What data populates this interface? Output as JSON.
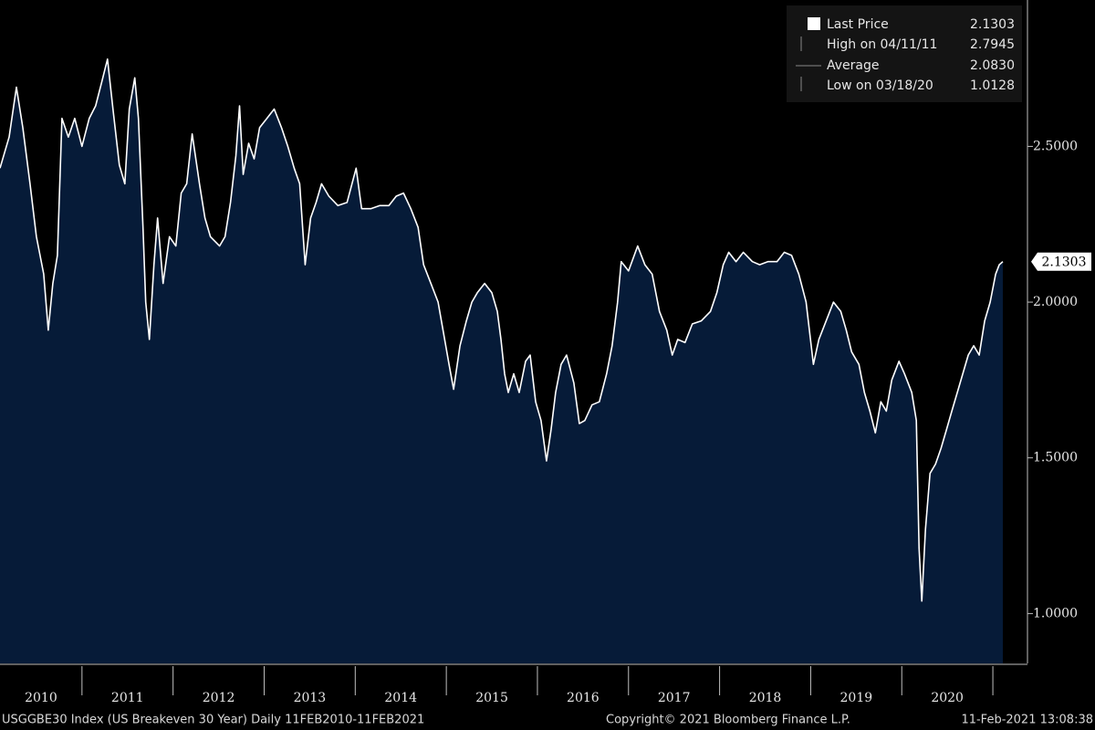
{
  "chart_data": {
    "type": "area",
    "line_color": "#ffffff",
    "fill_color": "#061b38",
    "x": [
      2010.1,
      2010.2,
      2010.28,
      2010.35,
      2010.43,
      2010.5,
      2010.58,
      2010.63,
      2010.68,
      2010.73,
      2010.78,
      2010.85,
      2010.92,
      2011.0,
      2011.08,
      2011.15,
      2011.22,
      2011.28,
      2011.34,
      2011.41,
      2011.47,
      2011.52,
      2011.58,
      2011.62,
      2011.67,
      2011.7,
      2011.74,
      2011.79,
      2011.83,
      2011.89,
      2011.96,
      2012.03,
      2012.09,
      2012.15,
      2012.21,
      2012.29,
      2012.35,
      2012.41,
      2012.51,
      2012.57,
      2012.63,
      2012.69,
      2012.73,
      2012.77,
      2012.83,
      2012.89,
      2012.95,
      2013.03,
      2013.11,
      2013.19,
      2013.26,
      2013.33,
      2013.39,
      2013.45,
      2013.51,
      2013.57,
      2013.63,
      2013.71,
      2013.81,
      2013.91,
      2014.01,
      2014.07,
      2014.17,
      2014.27,
      2014.37,
      2014.45,
      2014.53,
      2014.61,
      2014.69,
      2014.75,
      2014.83,
      2014.91,
      2014.97,
      2015.03,
      2015.08,
      2015.15,
      2015.22,
      2015.28,
      2015.34,
      2015.42,
      2015.5,
      2015.56,
      2015.6,
      2015.64,
      2015.68,
      2015.74,
      2015.8,
      2015.87,
      2015.92,
      2015.98,
      2016.04,
      2016.1,
      2016.15,
      2016.2,
      2016.26,
      2016.32,
      2016.4,
      2016.46,
      2016.52,
      2016.6,
      2016.68,
      2016.76,
      2016.82,
      2016.88,
      2016.92,
      2017.0,
      2017.1,
      2017.18,
      2017.26,
      2017.34,
      2017.42,
      2017.48,
      2017.54,
      2017.62,
      2017.7,
      2017.8,
      2017.9,
      2017.97,
      2018.04,
      2018.1,
      2018.18,
      2018.26,
      2018.36,
      2018.44,
      2018.53,
      2018.63,
      2018.71,
      2018.79,
      2018.87,
      2018.95,
      2019.03,
      2019.09,
      2019.17,
      2019.25,
      2019.33,
      2019.39,
      2019.45,
      2019.53,
      2019.59,
      2019.65,
      2019.71,
      2019.77,
      2019.83,
      2019.89,
      2019.97,
      2020.03,
      2020.11,
      2020.16,
      2020.19,
      2020.22,
      2020.26,
      2020.31,
      2020.37,
      2020.43,
      2020.49,
      2020.55,
      2020.61,
      2020.67,
      2020.73,
      2020.79,
      2020.85,
      2020.91,
      2020.97,
      2021.03,
      2021.07,
      2021.11
    ],
    "values": [
      2.43,
      2.53,
      2.69,
      2.56,
      2.38,
      2.21,
      2.09,
      1.91,
      2.06,
      2.15,
      2.59,
      2.53,
      2.59,
      2.5,
      2.59,
      2.63,
      2.71,
      2.78,
      2.62,
      2.44,
      2.38,
      2.62,
      2.72,
      2.59,
      2.24,
      2.0,
      1.88,
      2.12,
      2.27,
      2.06,
      2.21,
      2.18,
      2.35,
      2.38,
      2.54,
      2.38,
      2.27,
      2.21,
      2.18,
      2.21,
      2.32,
      2.47,
      2.63,
      2.41,
      2.51,
      2.46,
      2.56,
      2.59,
      2.62,
      2.56,
      2.5,
      2.43,
      2.38,
      2.12,
      2.27,
      2.32,
      2.38,
      2.34,
      2.31,
      2.32,
      2.43,
      2.3,
      2.3,
      2.31,
      2.31,
      2.34,
      2.35,
      2.3,
      2.24,
      2.12,
      2.06,
      2.0,
      1.9,
      1.8,
      1.72,
      1.86,
      1.94,
      2.0,
      2.03,
      2.06,
      2.03,
      1.97,
      1.88,
      1.77,
      1.71,
      1.77,
      1.71,
      1.81,
      1.83,
      1.68,
      1.62,
      1.49,
      1.59,
      1.71,
      1.8,
      1.83,
      1.74,
      1.61,
      1.62,
      1.67,
      1.68,
      1.77,
      1.86,
      2.0,
      2.13,
      2.1,
      2.18,
      2.12,
      2.09,
      1.97,
      1.91,
      1.83,
      1.88,
      1.87,
      1.93,
      1.94,
      1.97,
      2.03,
      2.12,
      2.16,
      2.13,
      2.16,
      2.13,
      2.12,
      2.13,
      2.13,
      2.16,
      2.15,
      2.09,
      2.0,
      1.8,
      1.88,
      1.94,
      2.0,
      1.97,
      1.91,
      1.84,
      1.8,
      1.71,
      1.65,
      1.58,
      1.68,
      1.65,
      1.75,
      1.81,
      1.77,
      1.71,
      1.62,
      1.21,
      1.04,
      1.27,
      1.45,
      1.48,
      1.53,
      1.59,
      1.65,
      1.71,
      1.77,
      1.83,
      1.86,
      1.83,
      1.94,
      2.0,
      2.09,
      2.12,
      2.13
    ],
    "xlim": [
      2010.1,
      2021.38
    ],
    "ylim": [
      0.84,
      2.97
    ],
    "xticks": [
      2010,
      2011,
      2012,
      2013,
      2014,
      2015,
      2016,
      2017,
      2018,
      2019,
      2020
    ],
    "yticks": [
      {
        "value": 1,
        "label": "1.0000"
      },
      {
        "value": 1.5,
        "label": "1.5000"
      },
      {
        "value": 2,
        "label": "2.0000"
      },
      {
        "value": 2.5,
        "label": "2.5000"
      }
    ],
    "legend": [
      {
        "name": "Last Price",
        "value": "2.1303"
      },
      {
        "name": "High on 04/11/11",
        "value": "2.7945"
      },
      {
        "name": "Average",
        "value": "2.0830"
      },
      {
        "name": "Low on 03/18/20",
        "value": "1.0128"
      }
    ],
    "footer": {
      "left": "USGGBE30 Index (US Breakeven 30 Year)  Daily 11FEB2010-11FEB2021",
      "center": "Copyright© 2021 Bloomberg Finance L.P.",
      "right": "11-Feb-2021 13:08:38"
    }
  }
}
